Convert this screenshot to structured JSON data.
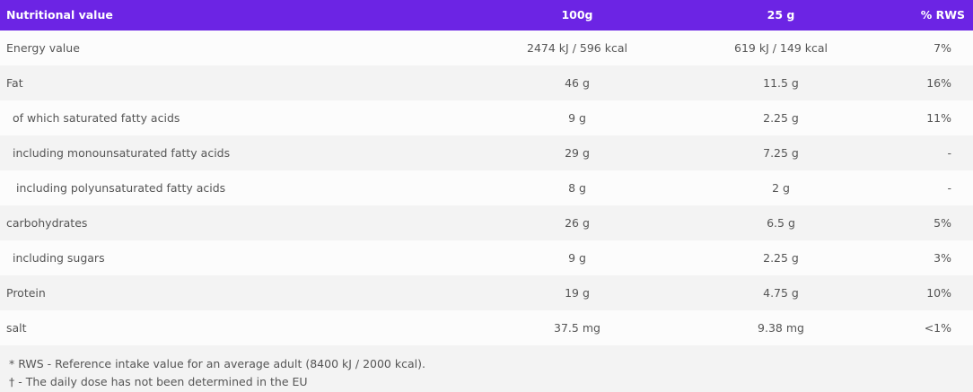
{
  "header": {
    "name": "Nutritional value",
    "col100": "100g",
    "col25": "25 g",
    "rws": "% RWS *"
  },
  "accent": "#6c24e4",
  "rows": [
    {
      "name": "Energy value",
      "v100": "2474 kJ / 596 kcal",
      "v25": "619 kJ / 149 kcal",
      "rws": "7%"
    },
    {
      "name": "Fat",
      "v100": "46 g",
      "v25": "11.5 g",
      "rws": "16%"
    },
    {
      "name": " of which saturated fatty acids",
      "v100": "9 g",
      "v25": "2.25 g",
      "rws": "11%"
    },
    {
      "name": " including monounsaturated fatty acids",
      "v100": "29 g",
      "v25": "7.25 g",
      "rws": "-"
    },
    {
      "name": "  including polyunsaturated fatty acids",
      "v100": "8 g",
      "v25": "2 g",
      "rws": "-"
    },
    {
      "name": "carbohydrates",
      "v100": "26 g",
      "v25": "6.5 g",
      "rws": "5%"
    },
    {
      "name": " including sugars",
      "v100": "9 g",
      "v25": "2.25 g",
      "rws": "3%"
    },
    {
      "name": "Protein",
      "v100": "19 g",
      "v25": "4.75 g",
      "rws": "10%"
    },
    {
      "name": "salt",
      "v100": "37.5 mg",
      "v25": "9.38 mg",
      "rws": "<1%"
    }
  ],
  "footnotes": [
    "* RWS - Reference intake value for an average adult (8400 kJ / 2000 kcal).",
    "† - The daily dose has not been determined in the EU"
  ]
}
